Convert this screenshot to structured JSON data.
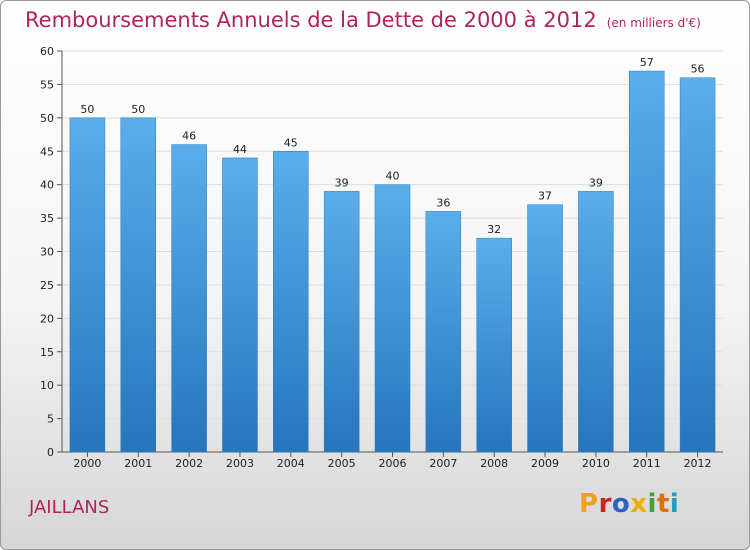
{
  "header": {
    "title": "Remboursements Annuels de la Dette de 2000 à 2012",
    "unit": "(en milliers d'€)"
  },
  "footer": {
    "town": "JAILLANS",
    "logo": "Proxiti",
    "logo_colors": [
      "#f0a020",
      "#d02020",
      "#3060c0",
      "#e8b000",
      "#40a040",
      "#e07000",
      "#20a0c0"
    ]
  },
  "colors": {
    "bar": "#3d8fd6",
    "bar_light": "#5aaeea",
    "bar_dark": "#2675bd",
    "grid": "#dddddd",
    "axis": "#555555",
    "title": "#b0245e"
  },
  "chart_data": {
    "type": "bar",
    "title": "Remboursements Annuels de la Dette de 2000 à 2012",
    "subtitle": "(en milliers d'€)",
    "xlabel": "",
    "ylabel": "",
    "categories": [
      "2000",
      "2001",
      "2002",
      "2003",
      "2004",
      "2005",
      "2006",
      "2007",
      "2008",
      "2009",
      "2010",
      "2011",
      "2012"
    ],
    "values": [
      50,
      50,
      46,
      44,
      45,
      39,
      40,
      36,
      32,
      37,
      39,
      57,
      56
    ],
    "ylim": [
      0,
      60
    ],
    "yticks": [
      0,
      5,
      10,
      15,
      20,
      25,
      30,
      35,
      40,
      45,
      50,
      55,
      60
    ],
    "grid": true,
    "legend": "none"
  }
}
